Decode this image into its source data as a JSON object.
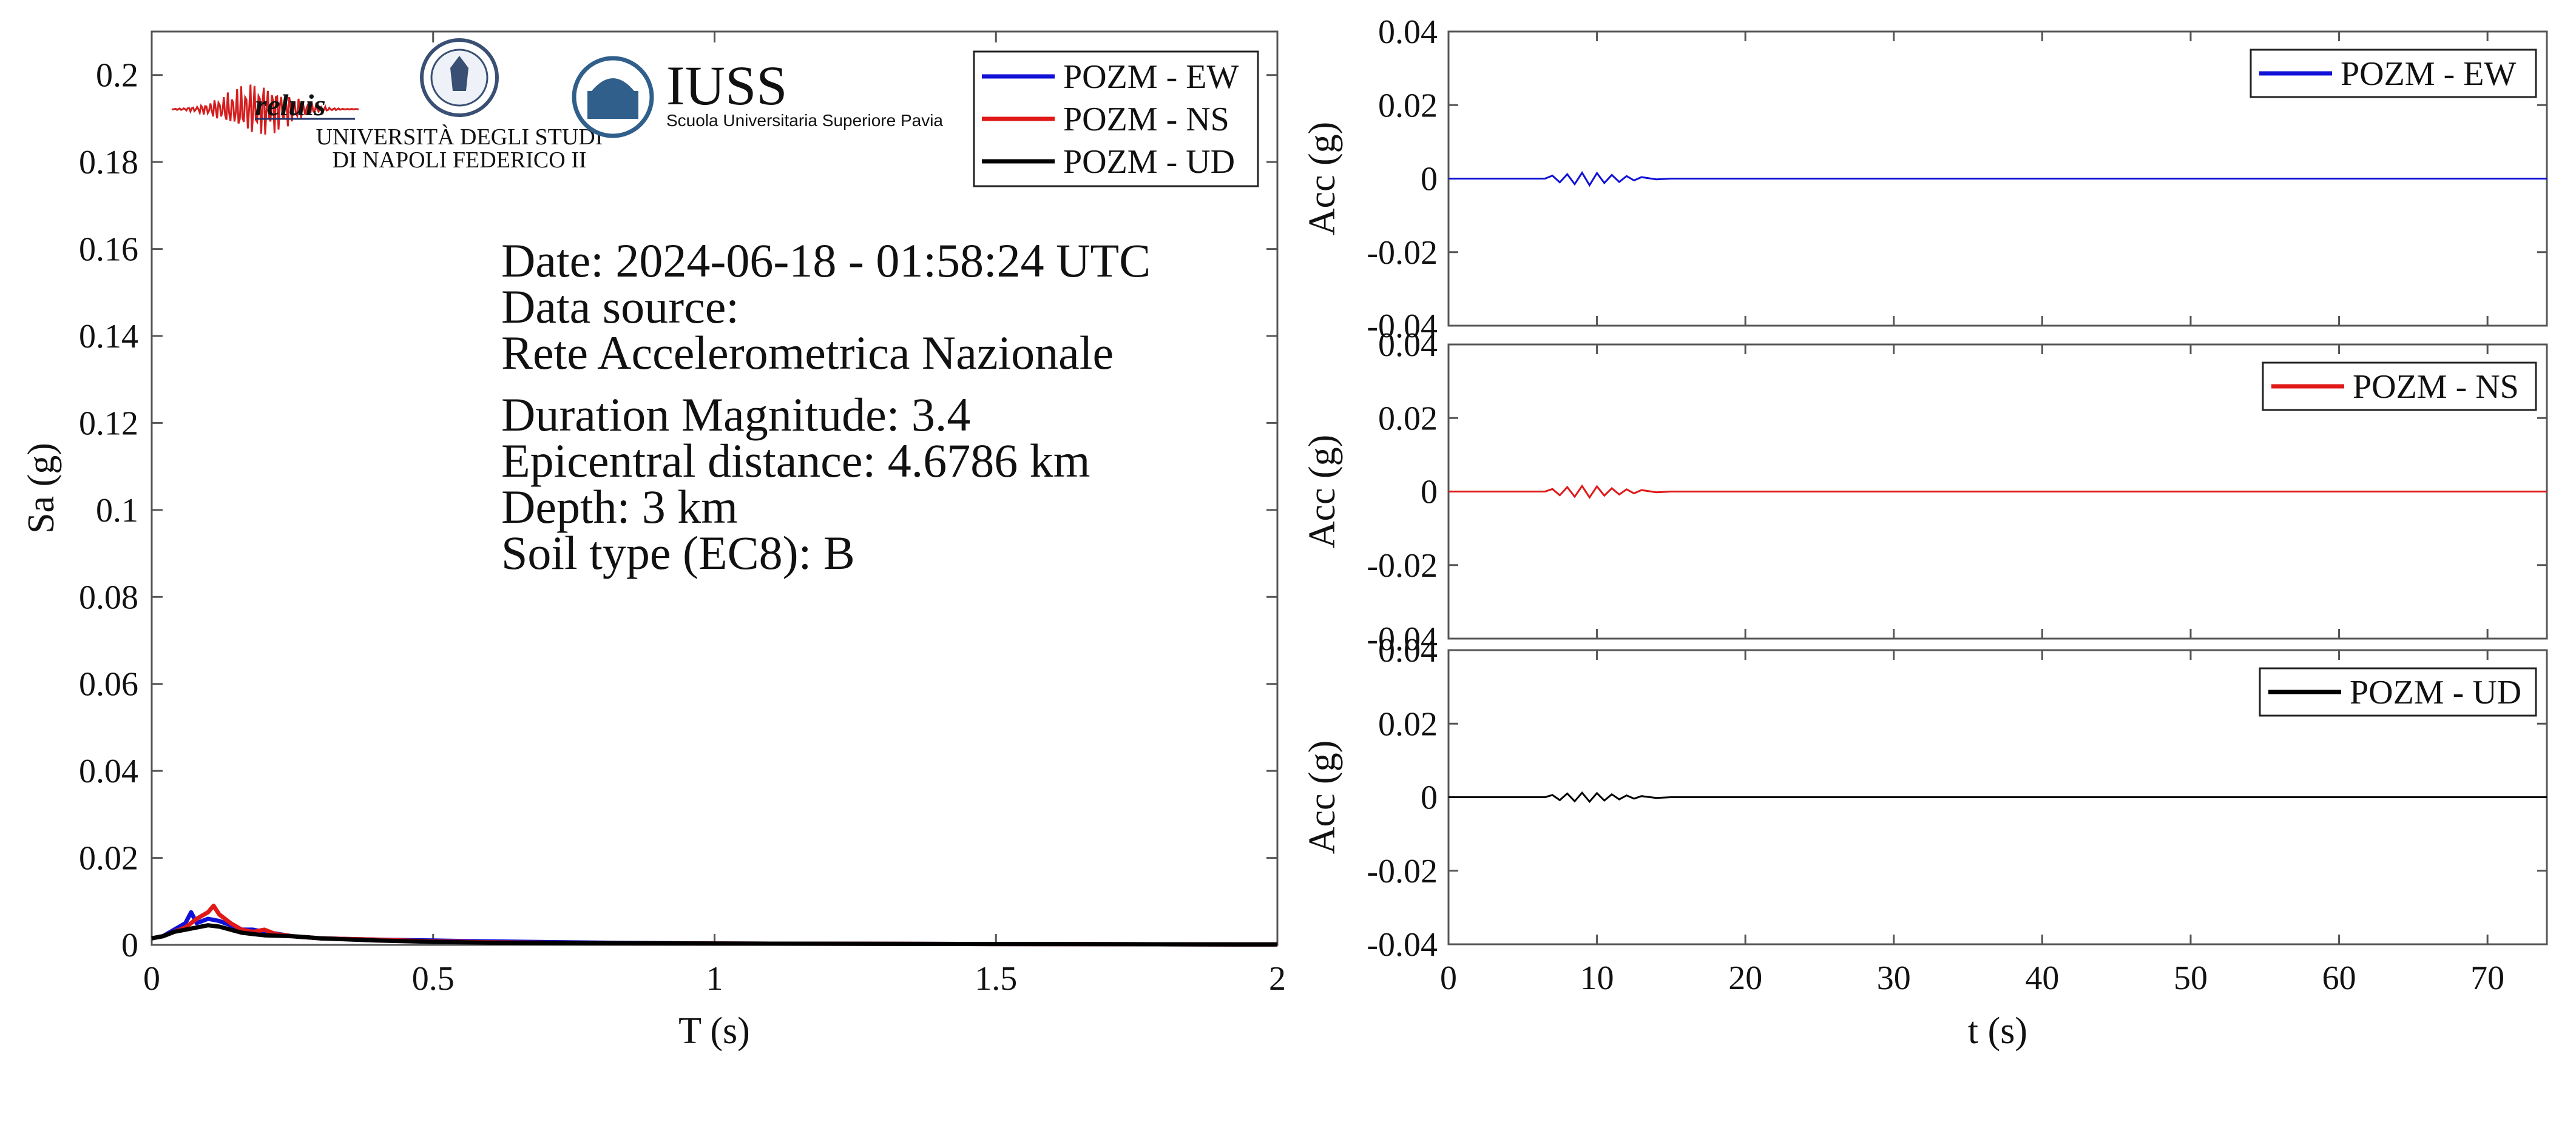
{
  "colors": {
    "ew": "#1010d8",
    "ns": "#e01818",
    "ud": "#000000",
    "axis": "#555555",
    "iuss": "#2f5f8a"
  },
  "logos": {
    "reluis": "reluis",
    "unina_line1": "UNIVERSITÀ DEGLI STUDI",
    "unina_line2": "DI NAPOLI FEDERICO II",
    "iuss_name": "IUSS",
    "iuss_sub": "Scuola Universitaria Superiore Pavia"
  },
  "info": {
    "date": "Date: 2024-06-18 - 01:58:24 UTC",
    "source_label": "Data source:",
    "source_name": "Rete Accelerometrica Nazionale",
    "magnitude": "Duration Magnitude: 3.4",
    "distance": "Epicentral distance: 4.6786 km",
    "depth": "Depth: 3 km",
    "soil": "Soil type (EC8): B"
  },
  "chart_data": [
    {
      "type": "line",
      "xlabel": "T (s)",
      "ylabel": "Sa (g)",
      "xlim": [
        0,
        2
      ],
      "ylim": [
        0,
        0.21
      ],
      "xticks": [
        0,
        0.5,
        1,
        1.5,
        2
      ],
      "xtick_labels": [
        "0",
        "0.5",
        "1",
        "1.5",
        "2"
      ],
      "yticks": [
        0,
        0.02,
        0.04,
        0.06,
        0.08,
        0.1,
        0.12,
        0.14,
        0.16,
        0.18,
        0.2
      ],
      "ytick_labels": [
        "0",
        "0.02",
        "0.04",
        "0.06",
        "0.08",
        "0.1",
        "0.12",
        "0.14",
        "0.16",
        "0.18",
        "0.2"
      ],
      "legend_position": "top-right",
      "series": [
        {
          "name": "POZM - EW",
          "color": "#1010d8",
          "x": [
            0,
            0.02,
            0.04,
            0.06,
            0.07,
            0.08,
            0.1,
            0.12,
            0.14,
            0.16,
            0.18,
            0.2,
            0.25,
            0.3,
            0.4,
            0.5,
            0.6,
            0.8,
            1.0,
            1.5,
            2.0
          ],
          "y": [
            0.0015,
            0.002,
            0.0035,
            0.005,
            0.0075,
            0.005,
            0.006,
            0.0055,
            0.0045,
            0.0035,
            0.0035,
            0.003,
            0.002,
            0.0015,
            0.0012,
            0.001,
            0.0008,
            0.0005,
            0.0003,
            0.0002,
            0.0001
          ]
        },
        {
          "name": "POZM - NS",
          "color": "#e01818",
          "x": [
            0,
            0.02,
            0.04,
            0.06,
            0.08,
            0.1,
            0.11,
            0.12,
            0.14,
            0.16,
            0.18,
            0.2,
            0.22,
            0.25,
            0.3,
            0.4,
            0.5,
            0.6,
            0.8,
            1.0,
            1.5,
            2.0
          ],
          "y": [
            0.0015,
            0.002,
            0.003,
            0.004,
            0.006,
            0.0075,
            0.009,
            0.007,
            0.005,
            0.0035,
            0.003,
            0.0035,
            0.0025,
            0.002,
            0.0015,
            0.0012,
            0.0008,
            0.0006,
            0.0004,
            0.0003,
            0.0002,
            0.0001
          ]
        },
        {
          "name": "POZM - UD",
          "color": "#000000",
          "x": [
            0,
            0.02,
            0.04,
            0.06,
            0.08,
            0.1,
            0.12,
            0.14,
            0.16,
            0.18,
            0.2,
            0.25,
            0.3,
            0.4,
            0.5,
            0.6,
            0.8,
            1.0,
            1.5,
            2.0
          ],
          "y": [
            0.0015,
            0.002,
            0.003,
            0.0035,
            0.004,
            0.0045,
            0.0042,
            0.0035,
            0.0028,
            0.0025,
            0.0022,
            0.002,
            0.0015,
            0.001,
            0.0007,
            0.0005,
            0.0004,
            0.0003,
            0.0002,
            0.0001
          ]
        }
      ]
    },
    {
      "type": "line",
      "xlabel": "",
      "ylabel": "Acc (g)",
      "xlim": [
        0,
        74
      ],
      "ylim": [
        -0.04,
        0.04
      ],
      "yticks": [
        -0.04,
        -0.02,
        0,
        0.02,
        0.04
      ],
      "ytick_labels": [
        "-0.04",
        "-0.02",
        "0",
        "0.02",
        "0.04"
      ],
      "legend_position": "top-right",
      "series": [
        {
          "name": "POZM - EW",
          "color": "#1010d8",
          "x": [
            0,
            6.5,
            7,
            7.5,
            8,
            8.5,
            9,
            9.5,
            10,
            10.5,
            11,
            11.5,
            12,
            12.5,
            13,
            14,
            15,
            74
          ],
          "y": [
            0,
            0,
            0.0008,
            -0.001,
            0.0012,
            -0.0015,
            0.0016,
            -0.0018,
            0.0015,
            -0.0012,
            0.001,
            -0.0009,
            0.0007,
            -0.0005,
            0.0004,
            -0.0002,
            0,
            0
          ]
        }
      ]
    },
    {
      "type": "line",
      "xlabel": "",
      "ylabel": "Acc (g)",
      "xlim": [
        0,
        74
      ],
      "ylim": [
        -0.04,
        0.04
      ],
      "yticks": [
        -0.04,
        -0.02,
        0,
        0.02,
        0.04
      ],
      "ytick_labels": [
        "-0.04",
        "-0.02",
        "0",
        "0.02",
        "0.04"
      ],
      "legend_position": "top-right",
      "series": [
        {
          "name": "POZM - NS",
          "color": "#e01818",
          "x": [
            0,
            6.5,
            7,
            7.5,
            8,
            8.5,
            9,
            9.5,
            10,
            10.5,
            11,
            11.5,
            12,
            12.5,
            13,
            14,
            15,
            74
          ],
          "y": [
            0,
            0,
            0.0007,
            -0.001,
            0.0012,
            -0.0014,
            0.0015,
            -0.0016,
            0.0014,
            -0.0011,
            0.0009,
            -0.0008,
            0.0006,
            -0.0005,
            0.0004,
            -0.0002,
            0,
            0
          ]
        }
      ]
    },
    {
      "type": "line",
      "xlabel": "t (s)",
      "ylabel": "Acc (g)",
      "xlim": [
        0,
        74
      ],
      "ylim": [
        -0.04,
        0.04
      ],
      "xticks": [
        0,
        10,
        20,
        30,
        40,
        50,
        60,
        70
      ],
      "xtick_labels": [
        "0",
        "10",
        "20",
        "30",
        "40",
        "50",
        "60",
        "70"
      ],
      "yticks": [
        -0.04,
        -0.02,
        0,
        0.02,
        0.04
      ],
      "ytick_labels": [
        "-0.04",
        "-0.02",
        "0",
        "0.02",
        "0.04"
      ],
      "legend_position": "top-right",
      "series": [
        {
          "name": "POZM - UD",
          "color": "#000000",
          "x": [
            0,
            6.5,
            7,
            7.5,
            8,
            8.5,
            9,
            9.5,
            10,
            10.5,
            11,
            11.5,
            12,
            12.5,
            13,
            14,
            15,
            74
          ],
          "y": [
            0,
            0,
            0.0006,
            -0.0008,
            0.001,
            -0.0011,
            0.0012,
            -0.0012,
            0.0011,
            -0.0009,
            0.0008,
            -0.0006,
            0.0005,
            -0.0004,
            0.0003,
            -0.0002,
            0,
            0
          ]
        }
      ]
    }
  ]
}
